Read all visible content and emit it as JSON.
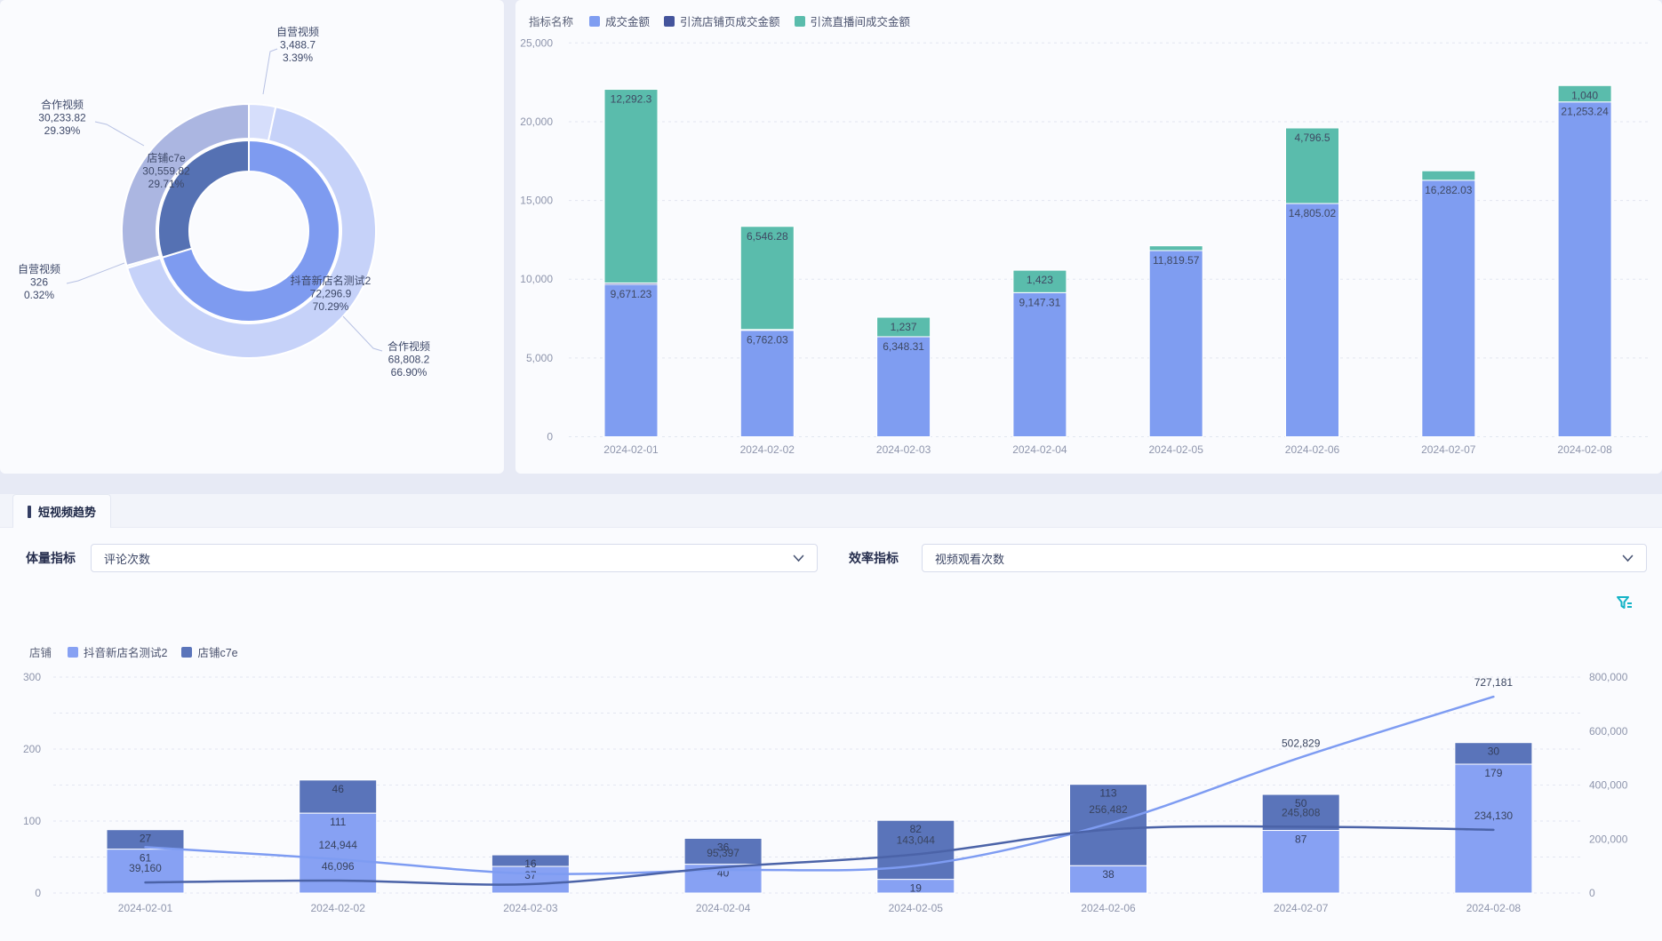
{
  "ui": {
    "tab_label": "短视频趋势",
    "filters": {
      "volume": {
        "label": "体量指标",
        "value": "评论次数"
      },
      "efficiency": {
        "label": "效率指标",
        "value": "视频观看次数"
      }
    },
    "icons": {
      "filter": "funnel-filter-icon",
      "chevron": "chevron-down-icon"
    },
    "colors": {
      "page_bg": "#e7eaf5",
      "card_bg": "#fafbfe",
      "axis_text": "#8e95ac",
      "label_text": "#3c4766",
      "grid": "#e2e6f0",
      "filter_icon": "#14b3c6"
    }
  },
  "chart_data": [
    {
      "id": "store-video-sales-donut",
      "type": "pie",
      "rings": [
        {
          "name": "inner-store-ring",
          "slices": [
            {
              "label": "抖音新店名测试2",
              "value": 72296.9,
              "display": "72,296.9",
              "pct": "70.29%",
              "color": "#7e9bf0"
            },
            {
              "label": "店铺c7e",
              "value": 30559.82,
              "display": "30,559.82",
              "pct": "29.71%",
              "color": "#5571b3"
            }
          ]
        },
        {
          "name": "outer-video-type-ring",
          "slices": [
            {
              "label": "自营视频",
              "value": 3488.7,
              "display": "3,488.7",
              "pct": "3.39%",
              "color": "#d6defb"
            },
            {
              "label": "合作视频",
              "value": 68808.2,
              "display": "68,808.2",
              "pct": "66.90%",
              "color": "#c6d2f9"
            },
            {
              "label": "自营视频",
              "value": 326,
              "display": "326",
              "pct": "0.32%",
              "color": "#e9eefd"
            },
            {
              "label": "合作视频",
              "value": 30233.82,
              "display": "30,233.82",
              "pct": "29.39%",
              "color": "#abb6e1"
            }
          ]
        }
      ]
    },
    {
      "id": "daily-sales-stacked-bar",
      "type": "bar",
      "legend_title": "指标名称",
      "categories": [
        "2024-02-01",
        "2024-02-02",
        "2024-02-03",
        "2024-02-04",
        "2024-02-05",
        "2024-02-06",
        "2024-02-07",
        "2024-02-08"
      ],
      "series": [
        {
          "name": "成交金额",
          "color": "#7f9df1",
          "values": [
            9671.23,
            6762.03,
            6348.31,
            9147.31,
            11819.57,
            14805.02,
            16282.03,
            21253.24
          ],
          "labels": [
            "9,671.23",
            "6,762.03",
            "6,348.31",
            "9,147.31",
            "11,819.57",
            "14,805.02",
            "16,282.03",
            "21,253.24"
          ]
        },
        {
          "name": "引流店铺页成交金额",
          "color": "#44549c",
          "values": [
            90,
            45,
            0,
            0,
            0,
            0,
            0,
            0
          ],
          "labels": [
            null,
            null,
            null,
            null,
            null,
            null,
            null,
            null
          ]
        },
        {
          "name": "引流直播间成交金额",
          "color": "#5abcac",
          "values": [
            12292.3,
            6546.28,
            1237,
            1423,
            300,
            4796.5,
            600,
            1040
          ],
          "labels": [
            "12,292.3",
            "6,546.28",
            "1,237",
            "1,423",
            null,
            "4,796.5",
            null,
            "1,040"
          ]
        }
      ],
      "ylim": [
        0,
        25000
      ],
      "yticks": [
        "0",
        "5,000",
        "10,000",
        "15,000",
        "20,000",
        "25,000"
      ],
      "grid": "dashed",
      "legend_position": "top-left"
    },
    {
      "id": "short-video-trend-combo",
      "type": "bar+line",
      "legend_title": "店铺",
      "categories": [
        "2024-02-01",
        "2024-02-02",
        "2024-02-03",
        "2024-02-04",
        "2024-02-05",
        "2024-02-06",
        "2024-02-07",
        "2024-02-08"
      ],
      "bar_series": [
        {
          "name": "抖音新店名测试2",
          "color": "#87a1f3",
          "values": [
            61,
            111,
            37,
            40,
            19,
            38,
            87,
            179
          ],
          "labels": [
            "61",
            "111",
            "37",
            "40",
            "19",
            "38",
            "87",
            "179"
          ]
        },
        {
          "name": "店铺c7e",
          "color": "#5a74ba",
          "values": [
            27,
            46,
            16,
            36,
            82,
            113,
            50,
            30
          ],
          "labels": [
            "27",
            "46",
            "16",
            "36",
            "82",
            "113",
            "50",
            "30"
          ]
        }
      ],
      "line_series": [
        {
          "name": "抖音新店名测试2",
          "color": "#7e9cf2",
          "values": [
            170000,
            124944,
            72000,
            85000,
            101000,
            256482,
            502829,
            727181
          ],
          "labels": [
            null,
            "124,944",
            null,
            null,
            null,
            "256,482",
            "502,829",
            "727,181"
          ]
        },
        {
          "name": "店铺c7e",
          "color": "#4b63a8",
          "values": [
            39160,
            46096,
            33000,
            95397,
            143044,
            235000,
            245808,
            234130
          ],
          "labels": [
            "39,160",
            "46,096",
            null,
            "95,397",
            "143,044",
            null,
            "245,808",
            "234,130"
          ]
        }
      ],
      "left_axis": {
        "lim": [
          0,
          300
        ],
        "ticks": [
          "0",
          "100",
          "200",
          "300"
        ]
      },
      "right_axis": {
        "lim": [
          0,
          800000
        ],
        "ticks": [
          "0",
          "200,000",
          "400,000",
          "600,000",
          "800,000"
        ]
      },
      "grid": "dashed"
    }
  ]
}
